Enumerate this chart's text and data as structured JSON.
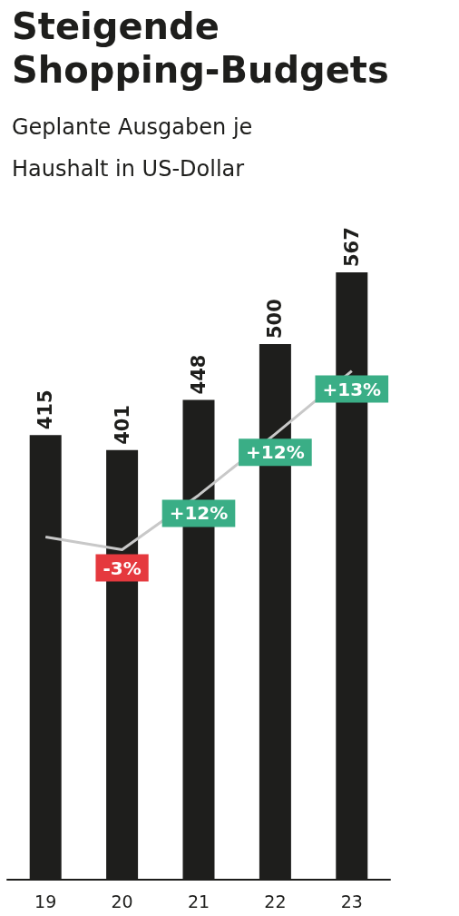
{
  "chart_data": {
    "type": "bar",
    "title": "Steigende Shopping-Budgets",
    "subtitle": "Geplante Ausgaben je Haushalt in US-Dollar",
    "categories": [
      "19",
      "20",
      "21",
      "22",
      "23"
    ],
    "series": [
      {
        "color": "#1e1e1c",
        "values": [
          415,
          401,
          448,
          500,
          567
        ],
        "value_labels": [
          "415",
          "401",
          "448",
          "500",
          "567"
        ]
      },
      {
        "type": "line",
        "color": "#c8c8c8",
        "values": [
          320,
          308,
          359,
          416,
          475
        ],
        "colors": [
          null,
          "#e5393e",
          "#3aae86",
          "#3aae86",
          "#3aae86"
        ]
      }
    ],
    "annotations": [
      {
        "text": "-3%",
        "x": "20",
        "y": 308
      },
      {
        "text": "+12%",
        "x": "21",
        "y": 359
      },
      {
        "text": "+12%",
        "x": "22",
        "y": 416
      },
      {
        "text": "+13%",
        "x": "23",
        "y": 475
      }
    ]
  }
}
